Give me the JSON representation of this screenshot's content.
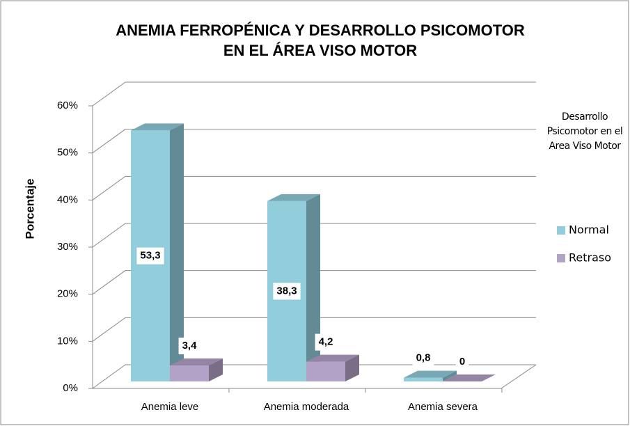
{
  "chart_data": {
    "type": "bar3d",
    "title": [
      "ANEMIA FERROPÉNICA Y DESARROLLO PSICOMOTOR",
      "EN EL ÁREA VISO MOTOR"
    ],
    "y_label": "Porcentaje",
    "categories": [
      "Anemia leve",
      "Anemia moderada",
      "Anemia severa"
    ],
    "series": [
      {
        "name": "Normal",
        "color": "#92cddc",
        "values": [
          53.3,
          38.3,
          0.8
        ],
        "value_labels": [
          "53,3",
          "38,3",
          "0,8"
        ]
      },
      {
        "name": "Retraso",
        "color": "#b3a2c7",
        "values": [
          3.4,
          4.2,
          0
        ],
        "value_labels": [
          "3,4",
          "4,2",
          "0"
        ]
      }
    ],
    "legend_title": "Desarrollo Psicomotor en el Area  Viso Motor",
    "legend_position": "right",
    "ylim": [
      0,
      60
    ],
    "yticks": [
      {
        "value": 0,
        "label": "0%"
      },
      {
        "value": 10,
        "label": "10%"
      },
      {
        "value": 20,
        "label": "20%"
      },
      {
        "value": 30,
        "label": "30%"
      },
      {
        "value": 40,
        "label": "40%"
      },
      {
        "value": 50,
        "label": "50%"
      },
      {
        "value": 60,
        "label": "60%"
      }
    ],
    "grid": true
  }
}
